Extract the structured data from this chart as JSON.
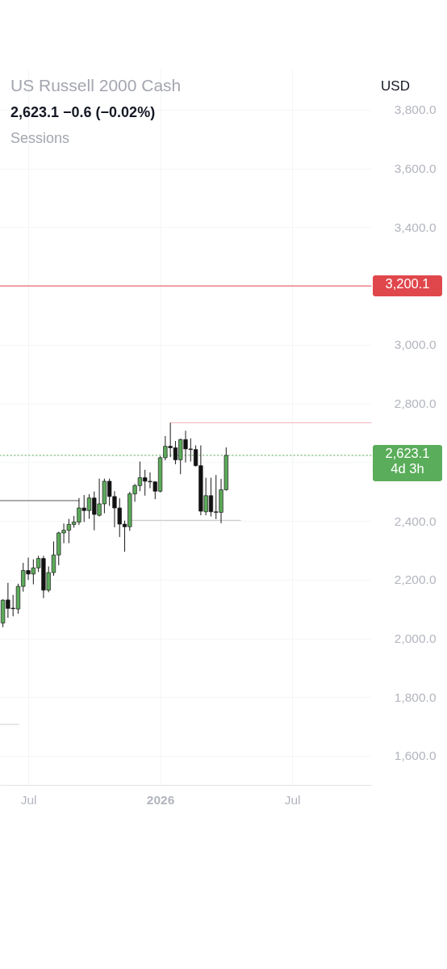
{
  "chart_data": {
    "type": "candlestick",
    "title": "US Russell 2000 Cash",
    "subtitle": "2,623.1  −0.6 (−0.02%)",
    "annotations": [
      "Sessions",
      "USD"
    ],
    "x": [
      "2025-06-02",
      "2025-06-09",
      "2025-06-16",
      "2025-06-23",
      "2025-06-30",
      "2025-07-07",
      "2025-07-14",
      "2025-07-21",
      "2025-07-28",
      "2025-08-04",
      "2025-08-11",
      "2025-08-18",
      "2025-08-25",
      "2025-09-01",
      "2025-09-08",
      "2025-09-15",
      "2025-09-22",
      "2025-09-29",
      "2025-10-06",
      "2025-10-13",
      "2025-10-20",
      "2025-10-27",
      "2025-11-03",
      "2025-11-10",
      "2025-11-17",
      "2025-11-24",
      "2025-12-01",
      "2025-12-08",
      "2025-12-15",
      "2025-12-22",
      "2025-12-29",
      "2026-01-05",
      "2026-01-12",
      "2026-01-19",
      "2026-01-26",
      "2026-02-02",
      "2026-02-09",
      "2026-02-16",
      "2026-02-23",
      "2026-03-02",
      "2026-03-09",
      "2026-03-16",
      "2026-03-23",
      "2026-03-30",
      "2026-04-06"
    ],
    "ohlc": [
      [
        2052,
        2133,
        2038,
        2130
      ],
      [
        2131,
        2189,
        2070,
        2102
      ],
      [
        2103,
        2148,
        2075,
        2101
      ],
      [
        2100,
        2186,
        2084,
        2177
      ],
      [
        2177,
        2257,
        2159,
        2231
      ],
      [
        2231,
        2275,
        2199,
        2219
      ],
      [
        2219,
        2269,
        2184,
        2240
      ],
      [
        2240,
        2281,
        2226,
        2272
      ],
      [
        2272,
        2281,
        2137,
        2164
      ],
      [
        2164,
        2245,
        2157,
        2224
      ],
      [
        2224,
        2330,
        2213,
        2284
      ],
      [
        2284,
        2363,
        2249,
        2359
      ],
      [
        2359,
        2391,
        2324,
        2368
      ],
      [
        2368,
        2407,
        2324,
        2388
      ],
      [
        2388,
        2417,
        2377,
        2396
      ],
      [
        2396,
        2478,
        2386,
        2444
      ],
      [
        2444,
        2488,
        2396,
        2435
      ],
      [
        2435,
        2491,
        2407,
        2478
      ],
      [
        2478,
        2500,
        2368,
        2422
      ],
      [
        2419,
        2544,
        2415,
        2458
      ],
      [
        2458,
        2544,
        2426,
        2535
      ],
      [
        2535,
        2544,
        2451,
        2483
      ],
      [
        2483,
        2501,
        2378,
        2444
      ],
      [
        2444,
        2477,
        2345,
        2389
      ],
      [
        2389,
        2401,
        2295,
        2380
      ],
      [
        2380,
        2499,
        2366,
        2492
      ],
      [
        2492,
        2526,
        2465,
        2520
      ],
      [
        2520,
        2602,
        2501,
        2547
      ],
      [
        2547,
        2574,
        2486,
        2535
      ],
      [
        2535,
        2565,
        2511,
        2533
      ],
      [
        2533,
        2535,
        2474,
        2501
      ],
      [
        2501,
        2620,
        2497,
        2615
      ],
      [
        2615,
        2689,
        2606,
        2654
      ],
      [
        2654,
        2734,
        2617,
        2649
      ],
      [
        2649,
        2672,
        2593,
        2608
      ],
      [
        2608,
        2680,
        2559,
        2677
      ],
      [
        2677,
        2707,
        2599,
        2645
      ],
      [
        2645,
        2681,
        2602,
        2643
      ],
      [
        2643,
        2657,
        2585,
        2588
      ],
      [
        2588,
        2657,
        2419,
        2433
      ],
      [
        2431,
        2547,
        2419,
        2486
      ],
      [
        2486,
        2547,
        2415,
        2431
      ],
      [
        2431,
        2556,
        2406,
        2429
      ],
      [
        2429,
        2543,
        2392,
        2506
      ],
      [
        2506,
        2650,
        2503,
        2623.1
      ]
    ],
    "colors": [
      "#5cab5a",
      "#111111",
      "#111111",
      "#5cab5a",
      "#5cab5a",
      "#111111",
      "#5cab5a",
      "#5cab5a",
      "#111111",
      "#5cab5a",
      "#5cab5a",
      "#5cab5a",
      "#5cab5a",
      "#5cab5a",
      "#5cab5a",
      "#5cab5a",
      "#111111",
      "#5cab5a",
      "#111111",
      "#5cab5a",
      "#5cab5a",
      "#111111",
      "#111111",
      "#111111",
      "#111111",
      "#5cab5a",
      "#5cab5a",
      "#5cab5a",
      "#111111",
      "#111111",
      "#111111",
      "#5cab5a",
      "#5cab5a",
      "#111111",
      "#111111",
      "#5cab5a",
      "#111111",
      "#111111",
      "#111111",
      "#111111",
      "#5cab5a",
      "#111111",
      "#111111",
      "#5cab5a",
      "#5cab5a"
    ],
    "series": [
      {
        "type": "line",
        "x": [
          "2025-05-29",
          "2025-09-15"
        ],
        "values": [
          2469,
          2469
        ],
        "color": "#5a5a5a"
      },
      {
        "type": "line",
        "x": [
          "2026-01-19",
          "2026-10-23"
        ],
        "values": [
          2734,
          2734
        ],
        "color": "#f3b3bd"
      },
      {
        "type": "line",
        "x": [
          "2025-11-24",
          "2026-04-26"
        ],
        "values": [
          2402,
          2402
        ],
        "color": "#c4c4c4"
      },
      {
        "type": "line",
        "x": [
          "2025-05-29",
          "2025-06-24"
        ],
        "values": [
          1707,
          1707
        ],
        "color": "#cfcfcf"
      }
    ],
    "ref_lines": [
      {
        "axis": "y",
        "value": 3200.1,
        "label": "3,200.1",
        "color": "#e0474c"
      },
      {
        "axis": "y",
        "value": 2623.1,
        "label": "2,623.1\n4d 3h",
        "color": "#5aad5a",
        "line_style": "dotted"
      }
    ],
    "xlim": [
      "2025-05-29",
      "2026-10-23"
    ],
    "xticks": [
      {
        "value": "2025-07-07",
        "label": "Jul"
      },
      {
        "value": "2026-01-05",
        "label": "2026"
      },
      {
        "value": "2026-07-06",
        "label": "Jul"
      }
    ],
    "ylim": [
      1501,
      3940
    ],
    "yticks": [
      {
        "value": 1600,
        "label": "1,600.0"
      },
      {
        "value": 1800,
        "label": "1,800.0"
      },
      {
        "value": 2000,
        "label": "2,000.0"
      },
      {
        "value": 2200,
        "label": "2,200.0"
      },
      {
        "value": 2400,
        "label": "2,400.0"
      },
      {
        "value": 2600,
        "label": null
      },
      {
        "value": 2800,
        "label": "2,800.0"
      },
      {
        "value": 3000,
        "label": "3,000.0"
      },
      {
        "value": 3200,
        "label": null
      },
      {
        "value": 3400,
        "label": "3,400.0"
      },
      {
        "value": 3600,
        "label": "3,600.0"
      },
      {
        "value": 3800,
        "label": "3,800.0"
      }
    ],
    "grid": true
  }
}
